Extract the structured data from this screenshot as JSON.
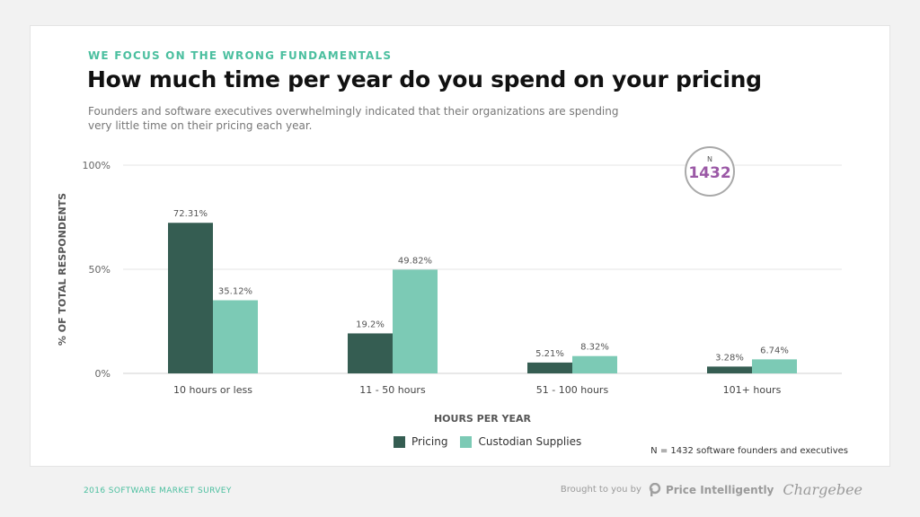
{
  "header": {
    "eyebrow": "WE FOCUS ON THE WRONG FUNDAMENTALS",
    "title": "How much time per year do you spend on your pricing",
    "subtitle": "Founders and software executives overwhelmingly indicated that their organizations are spending very little time on their pricing each year."
  },
  "badge": {
    "label": "N",
    "value": "1432"
  },
  "footnote": "N = 1432 software founders and executives",
  "footer": {
    "survey": "2016 SOFTWARE MARKET SURVEY",
    "brought_by": "Brought to you by",
    "brand1": "Price Intelligently",
    "brand2": "Chargebee"
  },
  "colors": {
    "pricing": "#355d52",
    "custodian": "#7ccab5",
    "grid": "#e6e6e6"
  },
  "chart_data": {
    "type": "bar",
    "categories": [
      "10 hours or less",
      "11 - 50 hours",
      "51 - 100 hours",
      "101+ hours"
    ],
    "series": [
      {
        "name": "Pricing",
        "values": [
          72.31,
          19.2,
          5.21,
          3.28
        ],
        "labels": [
          "72.31%",
          "19.2%",
          "5.21%",
          "3.28%"
        ]
      },
      {
        "name": "Custodian Supplies",
        "values": [
          35.12,
          49.82,
          8.32,
          6.74
        ],
        "labels": [
          "35.12%",
          "49.82%",
          "8.32%",
          "6.74%"
        ]
      }
    ],
    "xlabel": "HOURS PER YEAR",
    "ylabel": "% OF TOTAL RESPONDENTS",
    "yticks": [
      {
        "value": 0,
        "label": "0%"
      },
      {
        "value": 50,
        "label": "50%"
      },
      {
        "value": 100,
        "label": "100%"
      }
    ],
    "ylim": [
      0,
      100
    ],
    "legend": "bottom-center"
  }
}
